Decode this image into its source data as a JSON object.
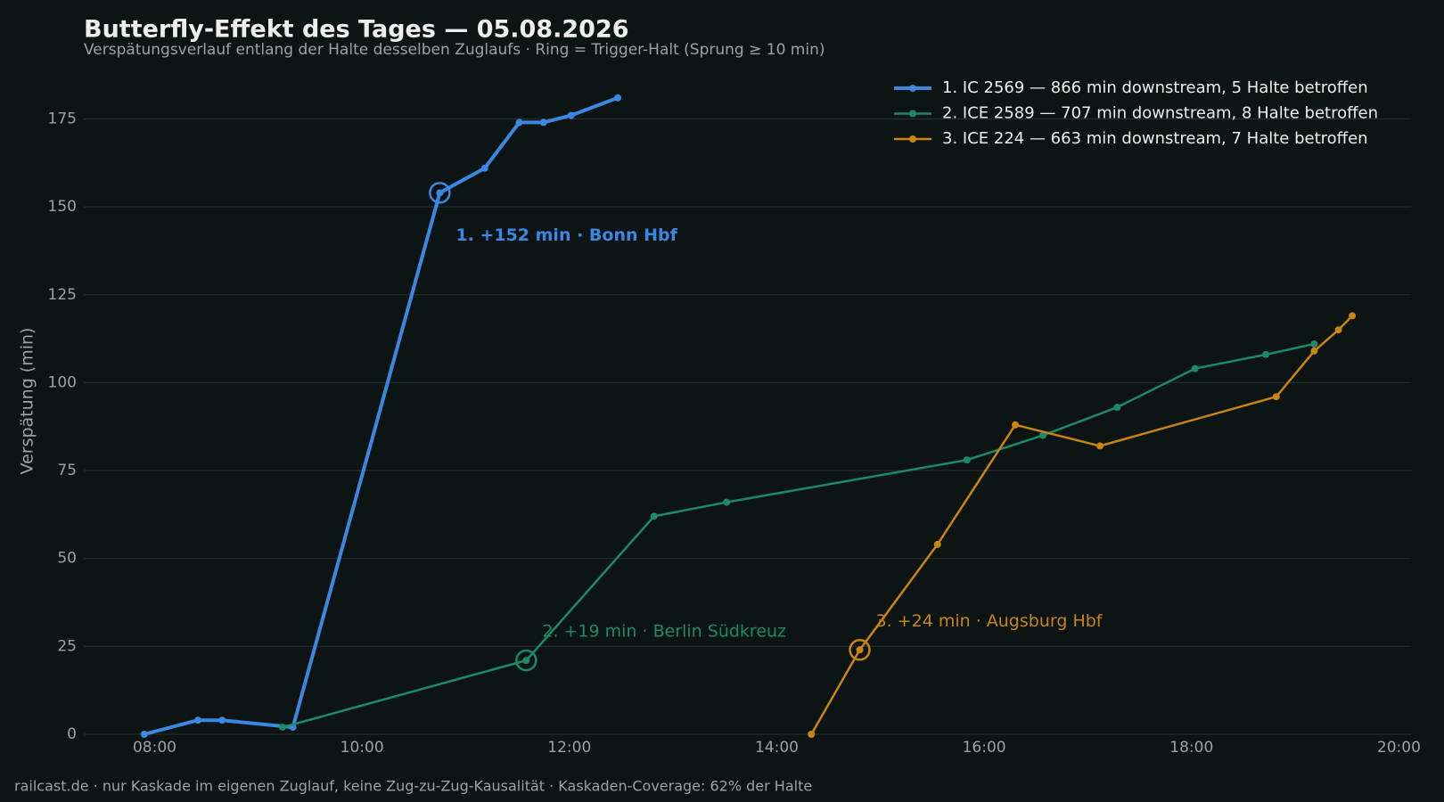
{
  "chart_data": {
    "type": "line",
    "title": "Butterfly-Effekt des Tages — 05.08.2026",
    "subtitle": "Verspätungsverlauf entlang der Halte desselben Zuglaufs · Ring = Trigger-Halt (Sprung ≥ 10 min)",
    "y_label": "Verspätung (min)",
    "footer": "railcast.de · nur Kaskade im eigenen Zuglauf, keine Zug-zu-Zug-Kausalität · Kaskaden-Coverage: 62% der Halte",
    "xlim": [
      "07:19",
      "20:07"
    ],
    "xticks": [
      "08:00",
      "10:00",
      "12:00",
      "14:00",
      "16:00",
      "18:00",
      "20:00"
    ],
    "ylim": [
      0,
      185
    ],
    "yticks": [
      0,
      25,
      50,
      75,
      100,
      125,
      150,
      175
    ],
    "grid": true,
    "legend": "upper right",
    "series": [
      {
        "name": "1. IC 2569 — 866 min downstream, 5 Halte betroffen",
        "color": "#3b87e2",
        "line_width": 4,
        "x": [
          "07:54",
          "08:25",
          "08:39",
          "09:20",
          "10:45",
          "11:11",
          "11:31",
          "11:45",
          "12:01",
          "12:28"
        ],
        "values": [
          0,
          4,
          4,
          2,
          154,
          161,
          174,
          174,
          176,
          181
        ],
        "trigger_index": 4,
        "annotation": "1. +152 min · Bonn Hbf"
      },
      {
        "name": "2. ICE 2589 — 707 min downstream, 8 Halte betroffen",
        "color": "#1c8a67",
        "line_width": 2.5,
        "x": [
          "09:14",
          "11:35",
          "12:49",
          "13:31",
          "15:50",
          "16:34",
          "17:17",
          "18:02",
          "18:43",
          "19:11"
        ],
        "values": [
          2,
          21,
          62,
          66,
          78,
          85,
          93,
          104,
          108,
          111
        ],
        "trigger_index": 1,
        "annotation": "2. +19 min · Berlin Südkreuz"
      },
      {
        "name": "3. ICE 224 — 663 min downstream, 7 Halte betroffen",
        "color": "#c98513",
        "line_width": 2.5,
        "x": [
          "14:20",
          "14:48",
          "15:33",
          "16:18",
          "17:07",
          "18:49",
          "19:11",
          "19:25",
          "19:33"
        ],
        "values": [
          0,
          24,
          54,
          88,
          82,
          96,
          109,
          115,
          119
        ],
        "trigger_index": 1,
        "annotation": "3. +24 min · Augsburg Hbf"
      }
    ]
  }
}
